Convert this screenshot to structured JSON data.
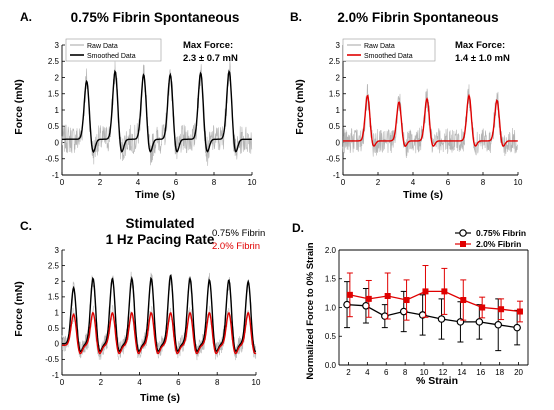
{
  "colors": {
    "raw": "#b4b4b4",
    "smoothed_fibrin075": "#000000",
    "smoothed_fibrin20": "#e00000",
    "marker_fibrin20": "#e00000"
  },
  "chart_data": [
    {
      "id": "A",
      "panel_label": "A.",
      "type": "line",
      "title": "0.75% Fibrin Spontaneous",
      "xlabel": "Time (s)",
      "ylabel": "Force (mN)",
      "xlim": [
        0,
        10
      ],
      "ylim": [
        -1,
        3
      ],
      "x_ticks": [
        "0",
        "2",
        "4",
        "6",
        "8",
        "10"
      ],
      "y_ticks": [
        "-1",
        "-0.5",
        "0",
        "0.5",
        "1",
        "1.5",
        "2",
        "2.5",
        "3"
      ],
      "legend_position": "top-left",
      "annotation_title": "Max Force:",
      "annotation_value": "2.3 ± 0.7 mN",
      "series": [
        {
          "name": "Raw Data",
          "color": "raw"
        },
        {
          "name": "Smoothed Data",
          "color": "smoothed_fibrin075",
          "peak_times": [
            1.3,
            2.8,
            4.3,
            5.7,
            7.3,
            8.8
          ],
          "peak_values": [
            1.9,
            2.2,
            2.1,
            2.1,
            2.15,
            2.2
          ],
          "baseline": 0.1,
          "trough": -0.35
        }
      ]
    },
    {
      "id": "B",
      "panel_label": "B.",
      "type": "line",
      "title": "2.0% Fibrin Spontaneous",
      "xlabel": "Time (s)",
      "ylabel": "Force (mN)",
      "xlim": [
        0,
        10
      ],
      "ylim": [
        -1,
        3
      ],
      "x_ticks": [
        "0",
        "2",
        "4",
        "6",
        "8",
        "10"
      ],
      "y_ticks": [
        "-1",
        "-0.5",
        "0",
        "0.5",
        "1",
        "1.5",
        "2",
        "2.5",
        "3"
      ],
      "legend_position": "top-left",
      "annotation_title": "Max Force:",
      "annotation_value": "1.4 ± 1.0 mN",
      "series": [
        {
          "name": "Raw Data",
          "color": "raw"
        },
        {
          "name": "Smoothed Data",
          "color": "smoothed_fibrin20",
          "peak_times": [
            1.4,
            3.2,
            4.8,
            7.2,
            8.8
          ],
          "peak_values": [
            1.45,
            1.25,
            1.35,
            1.45,
            1.3
          ],
          "baseline": 0.05,
          "trough": -0.15
        }
      ]
    },
    {
      "id": "C",
      "panel_label": "C.",
      "type": "line",
      "title_line1": "Stimulated",
      "title_line2": "1 Hz Pacing Rate",
      "xlabel": "Time (s)",
      "ylabel": "Force (mN)",
      "xlim": [
        0,
        10
      ],
      "ylim": [
        -1,
        3
      ],
      "x_ticks": [
        "0",
        "2",
        "4",
        "6",
        "8",
        "10"
      ],
      "y_ticks": [
        "-1",
        "-0.5",
        "0",
        "0.5",
        "1",
        "1.5",
        "2",
        "2.5",
        "3"
      ],
      "legend_position": "top-right",
      "series": [
        {
          "name": "0.75% Fibrin",
          "color": "smoothed_fibrin075",
          "peak_times": [
            0.6,
            1.6,
            2.6,
            3.6,
            4.6,
            5.6,
            6.6,
            7.6,
            8.6,
            9.6
          ],
          "peak_values": [
            1.8,
            2.1,
            2.1,
            2.1,
            2.1,
            2.2,
            2.1,
            2.05,
            2.05,
            2.0
          ],
          "baseline": 0.0,
          "trough": -0.3
        },
        {
          "name": "2.0% Fibrin",
          "color": "smoothed_fibrin20",
          "peak_times": [
            0.6,
            1.6,
            2.6,
            3.6,
            4.6,
            5.6,
            6.6,
            7.6,
            8.6,
            9.6
          ],
          "peak_values": [
            0.95,
            1.0,
            1.0,
            1.0,
            1.0,
            1.0,
            1.0,
            1.0,
            1.0,
            1.0
          ],
          "baseline": -0.05,
          "trough": -0.35
        }
      ]
    },
    {
      "id": "D",
      "panel_label": "D.",
      "type": "line",
      "xlabel": "%  Strain",
      "ylabel": "Normalized Force to 0% Strain",
      "xlim": [
        1,
        21
      ],
      "ylim": [
        0,
        2
      ],
      "x_ticks": [
        "2",
        "4",
        "6",
        "8",
        "10",
        "12",
        "14",
        "16",
        "18",
        "20"
      ],
      "y_ticks": [
        "0.0",
        "0.5",
        "1.0",
        "1.5",
        "2.0"
      ],
      "legend_position": "top-right",
      "x": [
        2,
        4,
        6,
        8,
        10,
        12,
        14,
        16,
        18,
        20
      ],
      "series": [
        {
          "name": "0.75% Fibrin",
          "marker": "open-circle",
          "color": "smoothed_fibrin075",
          "values": [
            1.05,
            1.03,
            0.85,
            0.93,
            0.87,
            0.8,
            0.75,
            0.75,
            0.7,
            0.65
          ],
          "errors": [
            0.4,
            0.3,
            0.2,
            0.35,
            0.35,
            0.35,
            0.35,
            0.3,
            0.45,
            0.3
          ]
        },
        {
          "name": "2.0% Fibrin",
          "marker": "filled-square",
          "color": "marker_fibrin20",
          "values": [
            1.22,
            1.15,
            1.2,
            1.13,
            1.28,
            1.28,
            1.13,
            1.0,
            0.97,
            0.93
          ],
          "errors": [
            0.38,
            0.32,
            0.4,
            0.35,
            0.45,
            0.4,
            0.35,
            0.18,
            0.18,
            0.18
          ]
        }
      ]
    }
  ]
}
